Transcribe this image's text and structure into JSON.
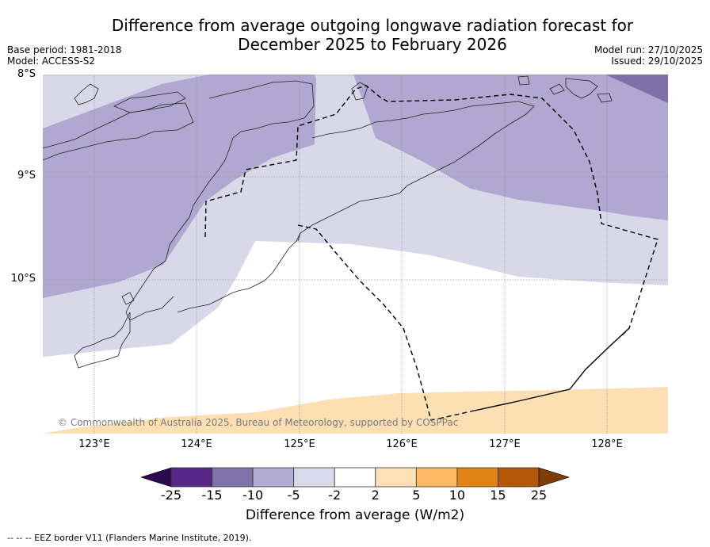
{
  "header": {
    "title_line1": "Difference from average outgoing longwave radiation forecast for",
    "title_line2": "December 2025 to February 2026",
    "base_period": "Base period: 1981-2018",
    "model": "Model: ACCESS-S2",
    "model_run": "Model run: 27/10/2025",
    "issued": "Issued: 29/10/2025"
  },
  "map": {
    "lat_labels": [
      "8°S",
      "9°S",
      "10°S"
    ],
    "lon_labels": [
      "123°E",
      "124°E",
      "125°E",
      "126°E",
      "127°E",
      "128°E"
    ],
    "extent": {
      "lon": [
        122.5,
        128.6
      ],
      "lat": [
        -11.5,
        -8.0
      ]
    },
    "credit": "© Commonwealth of Australia 2025, Bureau of Meteorology, supported by COSPPac",
    "regions": [
      {
        "category": "-15 to -10",
        "color": "#7f70a9",
        "note": "far north-east corner"
      },
      {
        "category": "-10 to -5",
        "color": "#b0a8d0",
        "note": "north-west and north-east bands"
      },
      {
        "category": "-5 to -2",
        "color": "#d8d8e9",
        "note": "central diagonal band"
      },
      {
        "category": "-2 to 2",
        "color": "#ffffff",
        "note": "south-central area"
      },
      {
        "category": "2 to 5",
        "color": "#fddfb4",
        "note": "southern edge"
      }
    ]
  },
  "colorbar": {
    "label": "Difference from average (W/m2)",
    "ticks": [
      "-25",
      "-15",
      "-10",
      "-5",
      "-2",
      "2",
      "5",
      "10",
      "15",
      "25"
    ],
    "under_color": "#2d0a4f",
    "over_color": "#7f3b08",
    "colors": [
      "#542788",
      "#8073ac",
      "#b2abd2",
      "#d8daeb",
      "#ffffff",
      "#fee0b6",
      "#fdb863",
      "#e08214",
      "#b35806"
    ]
  },
  "footnote": "--  --  -- EEZ border V11 (Flanders Marine Institute, 2019)."
}
